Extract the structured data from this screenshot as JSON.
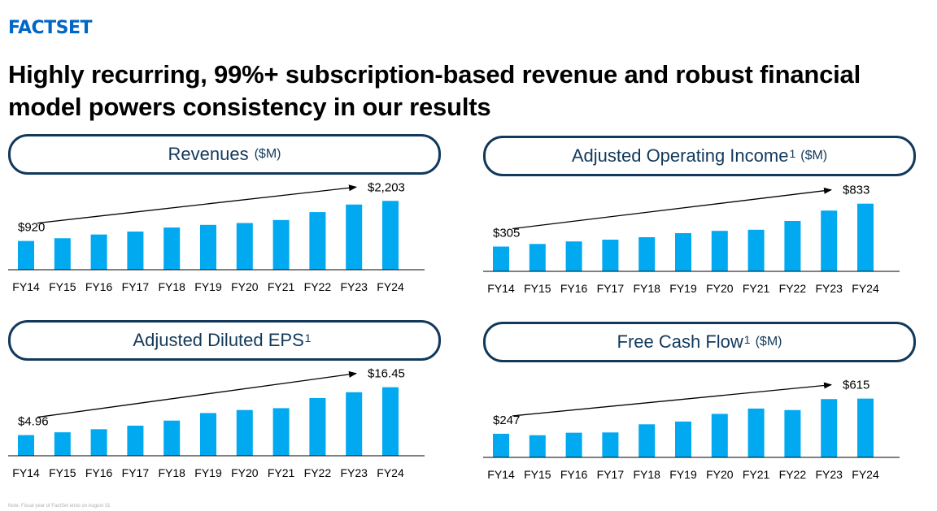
{
  "logo": {
    "text": "FACTSET",
    "color": "#0067c6"
  },
  "title": "Highly recurring, 99%+ subscription-based revenue and robust financial model powers consistency in our results",
  "footnote": "Note: Fiscal year of FactSet ends on August 31",
  "colors": {
    "bar": "#00a9f0",
    "accent": "#12395b",
    "text": "#000000"
  },
  "chart_data": [
    {
      "type": "bar",
      "title": "Revenues",
      "title_sup": "",
      "unit": "($M)",
      "categories": [
        "FY14",
        "FY15",
        "FY16",
        "FY17",
        "FY18",
        "FY19",
        "FY20",
        "FY21",
        "FY22",
        "FY23",
        "FY24"
      ],
      "values": [
        920,
        1007,
        1127,
        1221,
        1350,
        1435,
        1494,
        1591,
        1844,
        2086,
        2203
      ],
      "ylim": [
        0,
        2600
      ],
      "start_label": "$920",
      "end_label": "$2,203",
      "xlabel": "",
      "ylabel": ""
    },
    {
      "type": "bar",
      "title": "Adjusted Operating Income",
      "title_sup": "1",
      "unit": "($M)",
      "categories": [
        "FY14",
        "FY15",
        "FY16",
        "FY17",
        "FY18",
        "FY19",
        "FY20",
        "FY21",
        "FY22",
        "FY23",
        "FY24"
      ],
      "values": [
        305,
        337,
        368,
        390,
        420,
        470,
        498,
        512,
        620,
        748,
        833
      ],
      "ylim": [
        0,
        1000
      ],
      "start_label": "$305",
      "end_label": "$833",
      "xlabel": "",
      "ylabel": ""
    },
    {
      "type": "bar",
      "title": "Adjusted Diluted EPS",
      "title_sup": "1",
      "unit": "",
      "categories": [
        "FY14",
        "FY15",
        "FY16",
        "FY17",
        "FY18",
        "FY19",
        "FY20",
        "FY21",
        "FY22",
        "FY23",
        "FY24"
      ],
      "values": [
        4.96,
        5.63,
        6.37,
        7.22,
        8.44,
        10.25,
        10.98,
        11.42,
        13.85,
        15.25,
        16.45
      ],
      "ylim": [
        0,
        19.5
      ],
      "start_label": "$4.96",
      "end_label": "$16.45",
      "xlabel": "",
      "ylabel": ""
    },
    {
      "type": "bar",
      "title": "Free Cash Flow",
      "title_sup": "1",
      "unit": "($M)",
      "categories": [
        "FY14",
        "FY15",
        "FY16",
        "FY17",
        "FY18",
        "FY19",
        "FY20",
        "FY21",
        "FY22",
        "FY23",
        "FY24"
      ],
      "values": [
        247,
        232,
        258,
        261,
        346,
        375,
        455,
        511,
        495,
        610,
        615
      ],
      "ylim": [
        0,
        850
      ],
      "start_label": "$247",
      "end_label": "$615",
      "xlabel": "",
      "ylabel": ""
    }
  ]
}
